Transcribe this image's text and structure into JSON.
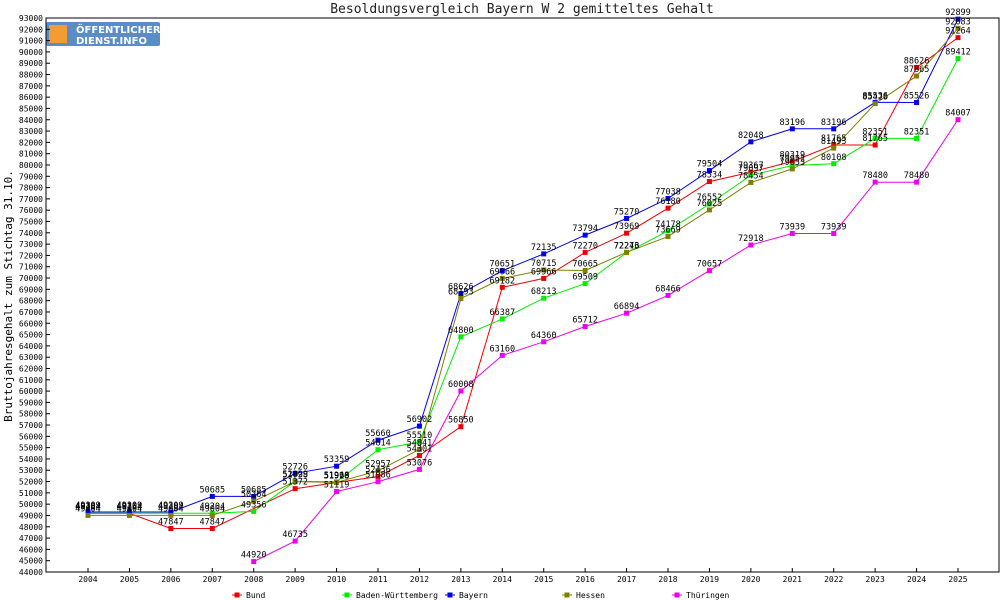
{
  "logo": {
    "line1": "ÖFFENTLICHER",
    "line2": "DIENST.INFO"
  },
  "chart_data": {
    "type": "line",
    "title": "Besoldungsvergleich Bayern W 2 gemitteltes Gehalt",
    "xlabel": "",
    "ylabel": "Bruttojahresgehalt zum Stichtag 31.10.",
    "ylim": [
      44000,
      93000
    ],
    "ytick_step": 1000,
    "grid": false,
    "legend_position": "bottom",
    "x": [
      2004,
      2005,
      2006,
      2007,
      2008,
      2009,
      2010,
      2011,
      2012,
      2013,
      2014,
      2015,
      2016,
      2017,
      2018,
      2019,
      2020,
      2021,
      2022,
      2023,
      2024,
      2025
    ],
    "series": [
      {
        "name": "Bund",
        "color": "#ee0000",
        "values": [
          49184,
          49184,
          47847,
          47847,
          null,
          51372,
          51919,
          52436,
          54301,
          56850,
          69182,
          69966,
          72270,
          73969,
          76180,
          78534,
          79367,
          80319,
          81765,
          81765,
          88626,
          91264
        ]
      },
      {
        "name": "Baden-Württemberg",
        "color": "#00ee00",
        "values": [
          49204,
          49204,
          49204,
          49204,
          49356,
          52029,
          51968,
          54814,
          55510,
          64800,
          66387,
          68213,
          69509,
          72246,
          74178,
          76552,
          79097,
          79952,
          80108,
          82351,
          82351,
          89412
        ]
      },
      {
        "name": "Bayern",
        "color": "#0000ee",
        "values": [
          49309,
          49309,
          49309,
          50685,
          50685,
          52726,
          53359,
          55660,
          56902,
          68626,
          70651,
          72135,
          73794,
          75270,
          77038,
          79504,
          82048,
          83196,
          83196,
          85536,
          85526,
          92899
        ]
      },
      {
        "name": "Hessen",
        "color": "#808000",
        "values": [
          49004,
          49004,
          49004,
          49004,
          50264,
          51998,
          51928,
          52957,
          54841,
          68193,
          69966,
          70715,
          70665,
          72273,
          73669,
          76025,
          78454,
          79653,
          81493,
          85426,
          87865,
          92083
        ]
      },
      {
        "name": "Thüringen",
        "color": "#ee00ee",
        "values": [
          null,
          null,
          null,
          null,
          44920,
          46735,
          51119,
          51986,
          53076,
          60008,
          63160,
          64360,
          65712,
          66894,
          68466,
          70657,
          72918,
          73939,
          73939,
          78480,
          78480,
          84007
        ]
      }
    ]
  }
}
